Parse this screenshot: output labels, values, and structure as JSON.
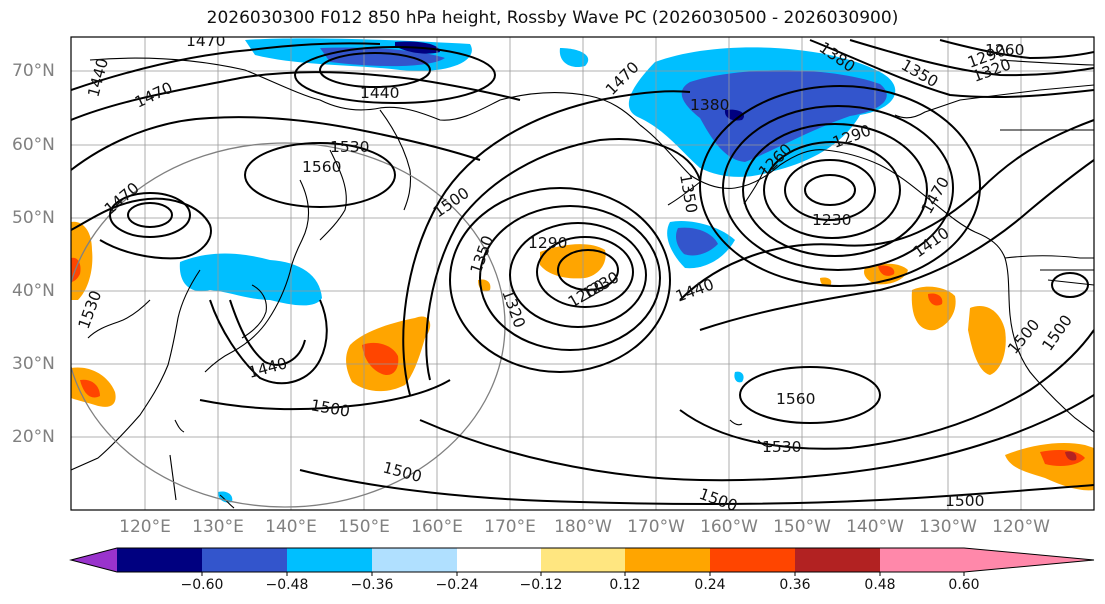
{
  "title": "2026030300 F012 850 hPa height, Rossby Wave PC (2026030500 - 2026030900)",
  "lat_labels": [
    "70°N",
    "60°N",
    "50°N",
    "40°N",
    "30°N",
    "20°N"
  ],
  "lon_labels": [
    "120°E",
    "130°E",
    "140°E",
    "150°E",
    "160°E",
    "170°E",
    "180°W",
    "170°W",
    "160°W",
    "150°W",
    "140°W",
    "130°W",
    "120°W"
  ],
  "contour_labels": [
    "1470",
    "1440",
    "1470",
    "1440",
    "1530",
    "1560",
    "1500",
    "1470",
    "1530",
    "1290",
    "1350",
    "1320",
    "1260",
    "1230",
    "1470",
    "1380",
    "1380",
    "1350",
    "1260",
    "1290",
    "1320",
    "1290",
    "1260",
    "1350",
    "1230",
    "1410",
    "1440",
    "1470",
    "1500",
    "1560",
    "1530",
    "1500",
    "1500",
    "1500",
    "1500",
    "1440",
    "1500"
  ],
  "colorbar": {
    "ticks": [
      "−0.60",
      "−0.48",
      "−0.36",
      "−0.24",
      "−0.12",
      "0.12",
      "0.24",
      "0.36",
      "0.48",
      "0.60"
    ],
    "colors": [
      "#9933cc",
      "#000080",
      "#3355cc",
      "#00bfff",
      "#b0e0ff",
      "#ffffff",
      "#ffe680",
      "#ffa500",
      "#ff4500",
      "#b22222",
      "#ff88aa"
    ]
  }
}
